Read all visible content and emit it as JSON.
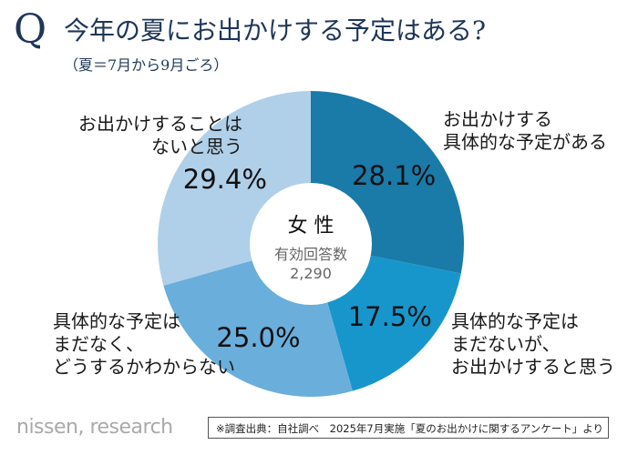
{
  "header": {
    "q_mark": "Q",
    "title": "今年の夏にお出かけする予定はある?",
    "subtitle": "（夏＝7月から9月ごろ）"
  },
  "chart_data": {
    "type": "pie",
    "style": "donut",
    "title": "今年の夏にお出かけする予定はある?",
    "center_title": "女 性",
    "center_sub_label": "有効回答数",
    "center_sub_value": "2,290",
    "unit": "%",
    "slices": [
      {
        "label": "お出かけする\n具体的な予定がある",
        "value": 28.1,
        "value_label": "28.1%",
        "color": "#1a7aa8"
      },
      {
        "label": "具体的な予定は\nまだないが、\nお出かけすると思う",
        "value": 17.5,
        "value_label": "17.5%",
        "color": "#1796cc"
      },
      {
        "label": "具体的な予定は\nまだなく、\nどうするかわからない",
        "value": 25.0,
        "value_label": "25.0%",
        "color": "#6aaedc"
      },
      {
        "label": "お出かけすることは\nないと思う",
        "value": 29.4,
        "value_label": "29.4%",
        "color": "#b0cfe8"
      }
    ]
  },
  "footer": {
    "logo": "nissen, research",
    "source": "※調査出典：自社調べ　2025年7月実施「夏のお出かけに関するアンケート」より"
  }
}
